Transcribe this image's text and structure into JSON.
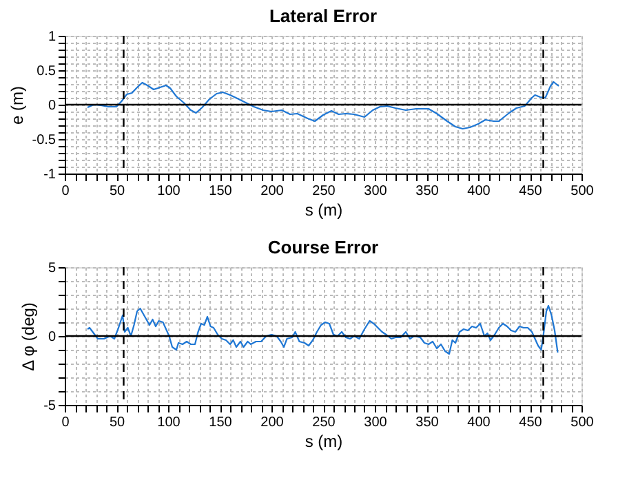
{
  "chart_data": [
    {
      "type": "line",
      "title": "Lateral Error",
      "xlabel": "s (m)",
      "ylabel": "e (m)",
      "grid": true,
      "line_style": "solid",
      "xlim": [
        0,
        500
      ],
      "ylim": [
        -1,
        1
      ],
      "xticks": [
        0,
        {
          "value": 10,
          "label": null
        },
        {
          "value": 20,
          "label": null
        },
        {
          "value": 30,
          "label": null
        },
        {
          "value": 40,
          "label": null
        },
        50,
        {
          "value": 60,
          "label": null
        },
        {
          "value": 70,
          "label": null
        },
        {
          "value": 80,
          "label": null
        },
        {
          "value": 90,
          "label": null
        },
        100,
        {
          "value": 110,
          "label": null
        },
        {
          "value": 120,
          "label": null
        },
        {
          "value": 130,
          "label": null
        },
        {
          "value": 140,
          "label": null
        },
        150,
        {
          "value": 160,
          "label": null
        },
        {
          "value": 170,
          "label": null
        },
        {
          "value": 180,
          "label": null
        },
        {
          "value": 190,
          "label": null
        },
        200,
        {
          "value": 210,
          "label": null
        },
        {
          "value": 220,
          "label": null
        },
        {
          "value": 230,
          "label": null
        },
        {
          "value": 240,
          "label": null
        },
        250,
        {
          "value": 260,
          "label": null
        },
        {
          "value": 270,
          "label": null
        },
        {
          "value": 280,
          "label": null
        },
        {
          "value": 290,
          "label": null
        },
        300,
        {
          "value": 310,
          "label": null
        },
        {
          "value": 320,
          "label": null
        },
        {
          "value": 330,
          "label": null
        },
        {
          "value": 340,
          "label": null
        },
        350,
        {
          "value": 360,
          "label": null
        },
        {
          "value": 370,
          "label": null
        },
        {
          "value": 380,
          "label": null
        },
        {
          "value": 390,
          "label": null
        },
        400,
        {
          "value": 410,
          "label": null
        },
        {
          "value": 420,
          "label": null
        },
        {
          "value": 430,
          "label": null
        },
        {
          "value": 440,
          "label": null
        },
        450,
        {
          "value": 460,
          "label": null
        },
        {
          "value": 470,
          "label": null
        },
        {
          "value": 480,
          "label": null
        },
        {
          "value": 490,
          "label": null
        },
        500
      ],
      "yticks": [
        -1,
        {
          "value": -0.9,
          "label": null
        },
        {
          "value": -0.8,
          "label": null
        },
        {
          "value": -0.7,
          "label": null
        },
        {
          "value": -0.6,
          "label": null
        },
        -0.5,
        {
          "value": -0.4,
          "label": null
        },
        {
          "value": -0.3,
          "label": null
        },
        {
          "value": -0.2,
          "label": null
        },
        {
          "value": -0.1,
          "label": null
        },
        0,
        {
          "value": 0.1,
          "label": null
        },
        {
          "value": 0.2,
          "label": null
        },
        {
          "value": 0.3,
          "label": null
        },
        {
          "value": 0.4,
          "label": null
        },
        0.5,
        {
          "value": 0.6,
          "label": null
        },
        {
          "value": 0.7,
          "label": null
        },
        {
          "value": 0.8,
          "label": null
        },
        {
          "value": 0.9,
          "label": null
        },
        1
      ],
      "ref_lines": [
        {
          "axis": "x",
          "value": 57,
          "color": "#000000",
          "line_style": "dashed"
        },
        {
          "axis": "x",
          "value": 463,
          "color": "#000000",
          "line_style": "dashed"
        },
        {
          "axis": "y",
          "value": 0,
          "color": "#000000",
          "line_style": "solid"
        }
      ],
      "series": [
        {
          "color": "#1f77d4",
          "x": [
            22,
            28,
            35,
            42,
            50,
            55,
            60,
            65,
            70,
            75,
            80,
            86,
            92,
            98,
            102,
            108,
            115,
            122,
            127,
            133,
            140,
            147,
            153,
            160,
            167,
            175,
            183,
            192,
            200,
            210,
            218,
            225,
            235,
            242,
            250,
            258,
            265,
            272,
            280,
            290,
            298,
            305,
            312,
            320,
            330,
            340,
            352,
            360,
            370,
            378,
            385,
            392,
            400,
            407,
            415,
            420,
            430,
            437,
            445,
            452,
            455,
            460,
            465,
            470,
            473,
            478
          ],
          "values": [
            -0.04,
            0.0,
            -0.01,
            -0.03,
            -0.03,
            0.05,
            0.15,
            0.17,
            0.25,
            0.32,
            0.28,
            0.22,
            0.25,
            0.28,
            0.24,
            0.12,
            0.03,
            -0.08,
            -0.12,
            -0.04,
            0.08,
            0.16,
            0.18,
            0.14,
            0.09,
            0.03,
            -0.03,
            -0.08,
            -0.1,
            -0.08,
            -0.14,
            -0.13,
            -0.2,
            -0.24,
            -0.15,
            -0.09,
            -0.14,
            -0.13,
            -0.14,
            -0.18,
            -0.08,
            -0.03,
            -0.02,
            -0.05,
            -0.08,
            -0.06,
            -0.06,
            -0.13,
            -0.24,
            -0.32,
            -0.35,
            -0.33,
            -0.28,
            -0.22,
            -0.24,
            -0.24,
            -0.12,
            -0.05,
            -0.02,
            0.1,
            0.14,
            0.11,
            0.1,
            0.27,
            0.33,
            0.27
          ]
        }
      ]
    },
    {
      "type": "line",
      "title": "Course Error",
      "xlabel": "s (m)",
      "ylabel": "Δ φ (deg)",
      "grid": true,
      "line_style": "solid",
      "xlim": [
        0,
        500
      ],
      "ylim": [
        -5,
        5
      ],
      "xticks": [
        0,
        {
          "value": 10,
          "label": null
        },
        {
          "value": 20,
          "label": null
        },
        {
          "value": 30,
          "label": null
        },
        {
          "value": 40,
          "label": null
        },
        50,
        {
          "value": 60,
          "label": null
        },
        {
          "value": 70,
          "label": null
        },
        {
          "value": 80,
          "label": null
        },
        {
          "value": 90,
          "label": null
        },
        100,
        {
          "value": 110,
          "label": null
        },
        {
          "value": 120,
          "label": null
        },
        {
          "value": 130,
          "label": null
        },
        {
          "value": 140,
          "label": null
        },
        150,
        {
          "value": 160,
          "label": null
        },
        {
          "value": 170,
          "label": null
        },
        {
          "value": 180,
          "label": null
        },
        {
          "value": 190,
          "label": null
        },
        200,
        {
          "value": 210,
          "label": null
        },
        {
          "value": 220,
          "label": null
        },
        {
          "value": 230,
          "label": null
        },
        {
          "value": 240,
          "label": null
        },
        250,
        {
          "value": 260,
          "label": null
        },
        {
          "value": 270,
          "label": null
        },
        {
          "value": 280,
          "label": null
        },
        {
          "value": 290,
          "label": null
        },
        300,
        {
          "value": 310,
          "label": null
        },
        {
          "value": 320,
          "label": null
        },
        {
          "value": 330,
          "label": null
        },
        {
          "value": 340,
          "label": null
        },
        350,
        {
          "value": 360,
          "label": null
        },
        {
          "value": 370,
          "label": null
        },
        {
          "value": 380,
          "label": null
        },
        {
          "value": 390,
          "label": null
        },
        400,
        {
          "value": 410,
          "label": null
        },
        {
          "value": 420,
          "label": null
        },
        {
          "value": 430,
          "label": null
        },
        {
          "value": 440,
          "label": null
        },
        450,
        {
          "value": 460,
          "label": null
        },
        {
          "value": 470,
          "label": null
        },
        {
          "value": 480,
          "label": null
        },
        {
          "value": 490,
          "label": null
        },
        500
      ],
      "yticks": [
        -5,
        {
          "value": -4,
          "label": null
        },
        {
          "value": -3,
          "label": null
        },
        {
          "value": -2,
          "label": null
        },
        {
          "value": -1,
          "label": null
        },
        0,
        {
          "value": 1,
          "label": null
        },
        {
          "value": 2,
          "label": null
        },
        {
          "value": 3,
          "label": null
        },
        {
          "value": 4,
          "label": null
        },
        5
      ],
      "ref_lines": [
        {
          "axis": "x",
          "value": 57,
          "color": "#000000",
          "line_style": "dashed"
        },
        {
          "axis": "x",
          "value": 463,
          "color": "#000000",
          "line_style": "dashed"
        },
        {
          "axis": "y",
          "value": 0,
          "color": "#000000",
          "line_style": "solid"
        }
      ],
      "series": [
        {
          "color": "#1f77d4",
          "x": [
            22,
            24,
            28,
            32,
            38,
            44,
            48,
            52,
            56,
            58,
            61,
            64,
            67,
            70,
            73,
            76,
            79,
            82,
            85,
            88,
            91,
            95,
            98,
            101,
            104,
            108,
            110,
            114,
            118,
            122,
            126,
            129,
            132,
            135,
            138,
            141,
            144,
            148,
            152,
            156,
            160,
            163,
            166,
            170,
            173,
            177,
            180,
            185,
            190,
            195,
            200,
            205,
            209,
            212,
            215,
            220,
            223,
            227,
            232,
            236,
            240,
            244,
            248,
            252,
            256,
            260,
            264,
            268,
            272,
            276,
            280,
            285,
            290,
            295,
            299,
            303,
            307,
            311,
            316,
            320,
            325,
            330,
            334,
            338,
            344,
            348,
            352,
            356,
            360,
            364,
            368,
            372,
            375,
            378,
            382,
            386,
            390,
            394,
            398,
            402,
            406,
            409,
            412,
            416,
            420,
            424,
            428,
            432,
            436,
            440,
            444,
            448,
            452,
            455,
            458,
            461,
            463,
            466,
            468,
            471,
            474,
            477
          ],
          "values": [
            0.5,
            0.6,
            0.2,
            -0.2,
            -0.2,
            0.0,
            -0.2,
            0.6,
            1.5,
            0.3,
            0.6,
            0.0,
            0.8,
            1.8,
            2.0,
            1.6,
            1.2,
            0.8,
            1.2,
            0.7,
            1.1,
            1.0,
            0.5,
            0.0,
            -0.8,
            -1.0,
            -0.5,
            -0.6,
            -0.4,
            -0.6,
            -0.6,
            0.3,
            0.9,
            0.8,
            1.4,
            0.7,
            0.6,
            0.1,
            -0.2,
            -0.3,
            -0.6,
            -0.3,
            -0.8,
            -0.4,
            -0.8,
            -0.4,
            -0.6,
            -0.4,
            -0.4,
            0.0,
            0.1,
            0.0,
            -0.4,
            -0.8,
            -0.2,
            -0.1,
            0.3,
            -0.4,
            -0.5,
            -0.7,
            -0.3,
            0.3,
            0.8,
            1.0,
            0.9,
            0.1,
            0.0,
            0.3,
            -0.1,
            -0.2,
            0.0,
            -0.2,
            0.5,
            1.1,
            0.9,
            0.6,
            0.3,
            0.1,
            -0.2,
            -0.1,
            -0.1,
            0.3,
            -0.2,
            0.0,
            -0.1,
            -0.5,
            -0.6,
            -0.4,
            -0.9,
            -0.6,
            -1.1,
            -1.3,
            -0.3,
            -0.5,
            0.3,
            0.5,
            0.4,
            0.7,
            0.6,
            0.9,
            0.0,
            0.2,
            -0.3,
            0.1,
            0.6,
            0.9,
            0.7,
            0.4,
            0.3,
            0.7,
            0.6,
            0.6,
            0.3,
            -0.2,
            -0.7,
            -1.0,
            0.0,
            1.8,
            2.2,
            1.5,
            0.4,
            -1.2
          ]
        }
      ]
    }
  ]
}
